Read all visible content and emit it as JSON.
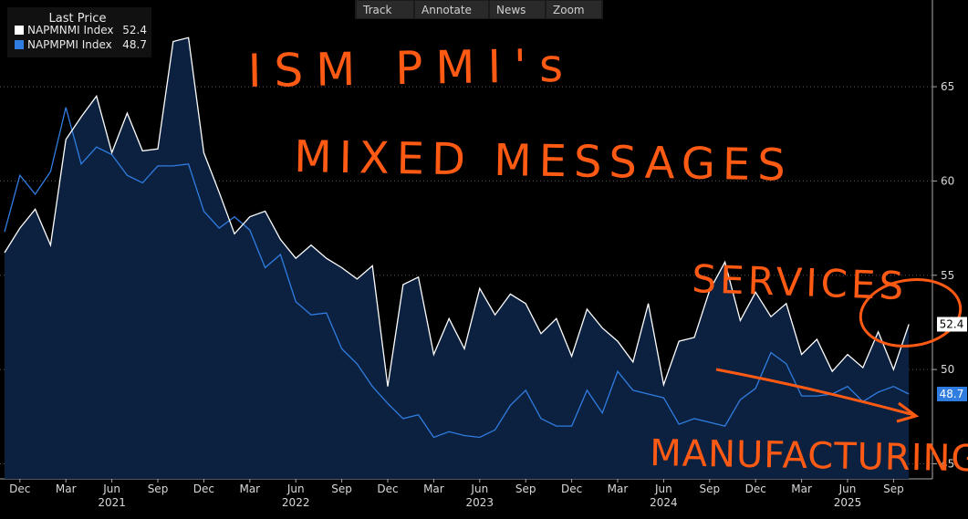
{
  "toolbar": [
    "Track",
    "Annotate",
    "News",
    "Zoom"
  ],
  "chart_data": {
    "type": "line",
    "legend_title": "Last Price",
    "annotations": [
      "ISM PMI's",
      "MIXED MESSAGES",
      "SERVICES",
      "MANUFACTURING"
    ],
    "categories": [
      "Nov 2020",
      "Dec 2020",
      "Jan 2021",
      "Feb 2021",
      "Mar 2021",
      "Apr 2021",
      "May 2021",
      "Jun 2021",
      "Jul 2021",
      "Aug 2021",
      "Sep 2021",
      "Oct 2021",
      "Nov 2021",
      "Dec 2021",
      "Jan 2022",
      "Feb 2022",
      "Mar 2022",
      "Apr 2022",
      "May 2022",
      "Jun 2022",
      "Jul 2022",
      "Aug 2022",
      "Sep 2022",
      "Oct 2022",
      "Nov 2022",
      "Dec 2022",
      "Jan 2023",
      "Feb 2023",
      "Mar 2023",
      "Apr 2023",
      "May 2023",
      "Jun 2023",
      "Jul 2023",
      "Aug 2023",
      "Sep 2023",
      "Oct 2023",
      "Nov 2023",
      "Dec 2023",
      "Jan 2024",
      "Feb 2024",
      "Mar 2024",
      "Apr 2024",
      "May 2024",
      "Jun 2024",
      "Jul 2024",
      "Aug 2024",
      "Sep 2024",
      "Oct 2024",
      "Nov 2024",
      "Dec 2024",
      "Jan 2025",
      "Feb 2025",
      "Mar 2025",
      "Apr 2025",
      "May 2025",
      "Jun 2025",
      "Jul 2025",
      "Aug 2025",
      "Sep 2025",
      "Oct 2025"
    ],
    "xticks": [
      {
        "value": "Dec 2020",
        "label": "Dec"
      },
      {
        "value": "Mar 2021",
        "label": "Mar"
      },
      {
        "value": "Jun 2021",
        "label": "Jun"
      },
      {
        "value": "Sep 2021",
        "label": "Sep"
      },
      {
        "value": "Dec 2021",
        "label": "Dec"
      },
      {
        "value": "Mar 2022",
        "label": "Mar"
      },
      {
        "value": "Jun 2022",
        "label": "Jun"
      },
      {
        "value": "Sep 2022",
        "label": "Sep"
      },
      {
        "value": "Dec 2022",
        "label": "Dec"
      },
      {
        "value": "Mar 2023",
        "label": "Mar"
      },
      {
        "value": "Jun 2023",
        "label": "Jun"
      },
      {
        "value": "Sep 2023",
        "label": "Sep"
      },
      {
        "value": "Dec 2023",
        "label": "Dec"
      },
      {
        "value": "Mar 2024",
        "label": "Mar"
      },
      {
        "value": "Jun 2024",
        "label": "Jun"
      },
      {
        "value": "Sep 2024",
        "label": "Sep"
      },
      {
        "value": "Dec 2024",
        "label": "Dec"
      },
      {
        "value": "Mar 2025",
        "label": "Mar"
      },
      {
        "value": "Jun 2025",
        "label": "Jun"
      },
      {
        "value": "Sep 2025",
        "label": "Sep"
      }
    ],
    "year_labels": [
      {
        "value": "Jun 2021",
        "label": "2021"
      },
      {
        "value": "Jun 2022",
        "label": "2022"
      },
      {
        "value": "Jun 2023",
        "label": "2023"
      },
      {
        "value": "Jun 2024",
        "label": "2024"
      },
      {
        "value": "Jun 2025",
        "label": "2025"
      }
    ],
    "ylim": [
      44.2,
      69.6
    ],
    "yticks": [
      45,
      50,
      55,
      60,
      65
    ],
    "grid": true,
    "series": [
      {
        "name": "NAPMNMI Index",
        "color": "#ffffff",
        "area_color": "#0c2140",
        "values": [
          56.2,
          57.5,
          58.5,
          56.6,
          62.2,
          63.4,
          64.5,
          61.5,
          63.6,
          61.6,
          61.7,
          67.4,
          67.6,
          61.5,
          59.4,
          57.2,
          58.1,
          58.4,
          56.9,
          55.9,
          56.6,
          55.9,
          55.4,
          54.8,
          55.5,
          49.1,
          54.5,
          54.9,
          50.8,
          52.7,
          51.1,
          54.3,
          52.9,
          54.0,
          53.5,
          51.9,
          52.7,
          50.7,
          53.2,
          52.2,
          51.5,
          50.4,
          53.5,
          49.2,
          51.5,
          51.7,
          54.2,
          55.7,
          52.6,
          54.1,
          52.8,
          53.5,
          50.8,
          51.6,
          49.9,
          50.8,
          50.1,
          52.0,
          50.0,
          52.4
        ]
      },
      {
        "name": "NAPMPMI Index",
        "color": "#2f7de1",
        "values": [
          57.3,
          60.3,
          59.3,
          60.5,
          63.9,
          60.9,
          61.8,
          61.4,
          60.3,
          59.9,
          60.8,
          60.8,
          60.9,
          58.4,
          57.5,
          58.1,
          57.4,
          55.4,
          56.1,
          53.6,
          52.9,
          53.0,
          51.1,
          50.3,
          49.1,
          48.2,
          47.4,
          47.6,
          46.4,
          46.7,
          46.5,
          46.4,
          46.8,
          48.1,
          48.9,
          47.4,
          47.0,
          47.0,
          48.9,
          47.7,
          49.9,
          48.9,
          48.7,
          48.5,
          47.1,
          47.4,
          47.2,
          47.0,
          48.4,
          49.0,
          50.9,
          50.3,
          48.6,
          48.6,
          48.7,
          49.1,
          48.3,
          48.8,
          49.1,
          48.7
        ]
      }
    ]
  }
}
